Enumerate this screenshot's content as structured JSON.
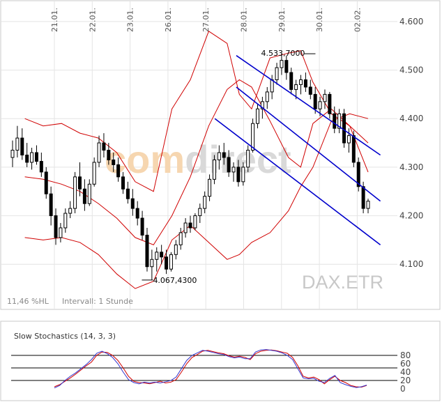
{
  "symbol": "DAX.ETR",
  "watermark": {
    "part1": "comdirect",
    "colors": [
      "#f6d6b0",
      "#d9d9d9"
    ]
  },
  "info": {
    "volatility": "11,46 %HL",
    "interval": "Intervall: 1 Stunde"
  },
  "chart_data": [
    {
      "type": "candlestick",
      "x_labels": [
        "21.01.",
        "22.01.",
        "23.01.",
        "26.01.",
        "27.01.",
        "28.01.",
        "29.01.",
        "30.01.",
        "02.02."
      ],
      "y_ticks": [
        "4.100",
        "4.200",
        "4.300",
        "4.400",
        "4.500",
        "4.600"
      ],
      "y_tick_values": [
        4100,
        4200,
        4300,
        4400,
        4500,
        4600
      ],
      "ylim": [
        4030,
        4630
      ],
      "annotations": [
        {
          "text": "4.533,7000",
          "value": 4533.7,
          "index": 97
        },
        {
          "text": "4.067,4300",
          "value": 4067.43,
          "index": 44
        }
      ],
      "candles": [
        {
          "o": 4320,
          "h": 4355,
          "l": 4300,
          "c": 4335
        },
        {
          "o": 4335,
          "h": 4385,
          "l": 4320,
          "c": 4360
        },
        {
          "o": 4360,
          "h": 4380,
          "l": 4315,
          "c": 4325
        },
        {
          "o": 4325,
          "h": 4350,
          "l": 4300,
          "c": 4310
        },
        {
          "o": 4310,
          "h": 4340,
          "l": 4295,
          "c": 4330
        },
        {
          "o": 4330,
          "h": 4345,
          "l": 4305,
          "c": 4312
        },
        {
          "o": 4312,
          "h": 4330,
          "l": 4280,
          "c": 4290
        },
        {
          "o": 4290,
          "h": 4300,
          "l": 4235,
          "c": 4245
        },
        {
          "o": 4245,
          "h": 4260,
          "l": 4180,
          "c": 4200
        },
        {
          "o": 4200,
          "h": 4215,
          "l": 4140,
          "c": 4155
        },
        {
          "o": 4155,
          "h": 4185,
          "l": 4145,
          "c": 4175
        },
        {
          "o": 4175,
          "h": 4215,
          "l": 4165,
          "c": 4205
        },
        {
          "o": 4205,
          "h": 4230,
          "l": 4195,
          "c": 4215
        },
        {
          "o": 4215,
          "h": 4290,
          "l": 4205,
          "c": 4280
        },
        {
          "o": 4280,
          "h": 4310,
          "l": 4240,
          "c": 4255
        },
        {
          "o": 4255,
          "h": 4275,
          "l": 4210,
          "c": 4225
        },
        {
          "o": 4225,
          "h": 4275,
          "l": 4220,
          "c": 4265
        },
        {
          "o": 4265,
          "h": 4320,
          "l": 4260,
          "c": 4310
        },
        {
          "o": 4310,
          "h": 4365,
          "l": 4300,
          "c": 4350
        },
        {
          "o": 4350,
          "h": 4370,
          "l": 4320,
          "c": 4335
        },
        {
          "o": 4335,
          "h": 4350,
          "l": 4305,
          "c": 4315
        },
        {
          "o": 4315,
          "h": 4330,
          "l": 4290,
          "c": 4305
        },
        {
          "o": 4305,
          "h": 4320,
          "l": 4270,
          "c": 4280
        },
        {
          "o": 4280,
          "h": 4290,
          "l": 4245,
          "c": 4255
        },
        {
          "o": 4255,
          "h": 4270,
          "l": 4225,
          "c": 4235
        },
        {
          "o": 4235,
          "h": 4255,
          "l": 4200,
          "c": 4215
        },
        {
          "o": 4215,
          "h": 4230,
          "l": 4180,
          "c": 4195
        },
        {
          "o": 4195,
          "h": 4210,
          "l": 4150,
          "c": 4160
        },
        {
          "o": 4160,
          "h": 4175,
          "l": 4085,
          "c": 4095
        },
        {
          "o": 4095,
          "h": 4130,
          "l": 4067,
          "c": 4110
        },
        {
          "o": 4110,
          "h": 4135,
          "l": 4085,
          "c": 4125
        },
        {
          "o": 4125,
          "h": 4140,
          "l": 4100,
          "c": 4115
        },
        {
          "o": 4115,
          "h": 4130,
          "l": 4080,
          "c": 4090
        },
        {
          "o": 4090,
          "h": 4125,
          "l": 4085,
          "c": 4120
        },
        {
          "o": 4120,
          "h": 4150,
          "l": 4110,
          "c": 4140
        },
        {
          "o": 4140,
          "h": 4175,
          "l": 4130,
          "c": 4165
        },
        {
          "o": 4165,
          "h": 4195,
          "l": 4155,
          "c": 4185
        },
        {
          "o": 4185,
          "h": 4200,
          "l": 4165,
          "c": 4175
        },
        {
          "o": 4175,
          "h": 4205,
          "l": 4170,
          "c": 4200
        },
        {
          "o": 4200,
          "h": 4225,
          "l": 4185,
          "c": 4215
        },
        {
          "o": 4215,
          "h": 4250,
          "l": 4205,
          "c": 4240
        },
        {
          "o": 4240,
          "h": 4285,
          "l": 4230,
          "c": 4275
        },
        {
          "o": 4275,
          "h": 4325,
          "l": 4265,
          "c": 4315
        },
        {
          "o": 4315,
          "h": 4345,
          "l": 4295,
          "c": 4330
        },
        {
          "o": 4330,
          "h": 4350,
          "l": 4305,
          "c": 4320
        },
        {
          "o": 4320,
          "h": 4335,
          "l": 4280,
          "c": 4290
        },
        {
          "o": 4290,
          "h": 4310,
          "l": 4270,
          "c": 4300
        },
        {
          "o": 4300,
          "h": 4315,
          "l": 4260,
          "c": 4270
        },
        {
          "o": 4270,
          "h": 4310,
          "l": 4262,
          "c": 4300
        },
        {
          "o": 4300,
          "h": 4345,
          "l": 4290,
          "c": 4335
        },
        {
          "o": 4335,
          "h": 4400,
          "l": 4330,
          "c": 4390
        },
        {
          "o": 4390,
          "h": 4430,
          "l": 4380,
          "c": 4420
        },
        {
          "o": 4420,
          "h": 4445,
          "l": 4400,
          "c": 4435
        },
        {
          "o": 4435,
          "h": 4465,
          "l": 4420,
          "c": 4455
        },
        {
          "o": 4455,
          "h": 4490,
          "l": 4440,
          "c": 4480
        },
        {
          "o": 4480,
          "h": 4515,
          "l": 4470,
          "c": 4505
        },
        {
          "o": 4505,
          "h": 4534,
          "l": 4490,
          "c": 4520
        },
        {
          "o": 4520,
          "h": 4530,
          "l": 4480,
          "c": 4495
        },
        {
          "o": 4495,
          "h": 4505,
          "l": 4450,
          "c": 4460
        },
        {
          "o": 4460,
          "h": 4480,
          "l": 4440,
          "c": 4470
        },
        {
          "o": 4470,
          "h": 4490,
          "l": 4450,
          "c": 4480
        },
        {
          "o": 4480,
          "h": 4495,
          "l": 4455,
          "c": 4465
        },
        {
          "o": 4465,
          "h": 4480,
          "l": 4440,
          "c": 4450
        },
        {
          "o": 4450,
          "h": 4465,
          "l": 4410,
          "c": 4420
        },
        {
          "o": 4420,
          "h": 4445,
          "l": 4405,
          "c": 4435
        },
        {
          "o": 4435,
          "h": 4460,
          "l": 4420,
          "c": 4450
        },
        {
          "o": 4450,
          "h": 4455,
          "l": 4400,
          "c": 4410
        },
        {
          "o": 4410,
          "h": 4425,
          "l": 4370,
          "c": 4380
        },
        {
          "o": 4380,
          "h": 4420,
          "l": 4370,
          "c": 4410
        },
        {
          "o": 4410,
          "h": 4420,
          "l": 4340,
          "c": 4350
        },
        {
          "o": 4350,
          "h": 4380,
          "l": 4330,
          "c": 4365
        },
        {
          "o": 4365,
          "h": 4375,
          "l": 4300,
          "c": 4310
        },
        {
          "o": 4310,
          "h": 4320,
          "l": 4250,
          "c": 4260
        },
        {
          "o": 4260,
          "h": 4270,
          "l": 4205,
          "c": 4215
        },
        {
          "o": 4215,
          "h": 4235,
          "l": 4205,
          "c": 4230
        }
      ],
      "bollinger": {
        "upper": [
          [
            4,
            4400
          ],
          [
            10,
            4385
          ],
          [
            16,
            4390
          ],
          [
            22,
            4370
          ],
          [
            28,
            4360
          ],
          [
            34,
            4330
          ],
          [
            40,
            4270
          ],
          [
            46,
            4250
          ],
          [
            52,
            4420
          ],
          [
            58,
            4480
          ],
          [
            64,
            4580
          ],
          [
            70,
            4555
          ],
          [
            74,
            4450
          ],
          [
            78,
            4420
          ],
          [
            84,
            4525
          ],
          [
            90,
            4535
          ],
          [
            94,
            4540
          ],
          [
            98,
            4475
          ],
          [
            104,
            4410
          ],
          [
            110,
            4385
          ],
          [
            116,
            4350
          ]
        ],
        "lower": [
          [
            4,
            4155
          ],
          [
            10,
            4150
          ],
          [
            16,
            4155
          ],
          [
            22,
            4145
          ],
          [
            28,
            4120
          ],
          [
            34,
            4080
          ],
          [
            40,
            4050
          ],
          [
            46,
            4065
          ],
          [
            52,
            4150
          ],
          [
            58,
            4180
          ],
          [
            64,
            4145
          ],
          [
            70,
            4110
          ],
          [
            74,
            4120
          ],
          [
            78,
            4145
          ],
          [
            84,
            4165
          ],
          [
            90,
            4210
          ],
          [
            94,
            4260
          ],
          [
            98,
            4300
          ],
          [
            104,
            4395
          ],
          [
            110,
            4410
          ],
          [
            116,
            4400
          ]
        ],
        "mid": [
          [
            4,
            4280
          ],
          [
            10,
            4275
          ],
          [
            16,
            4265
          ],
          [
            22,
            4250
          ],
          [
            28,
            4225
          ],
          [
            34,
            4195
          ],
          [
            40,
            4155
          ],
          [
            46,
            4140
          ],
          [
            52,
            4200
          ],
          [
            58,
            4280
          ],
          [
            64,
            4385
          ],
          [
            70,
            4460
          ],
          [
            74,
            4480
          ],
          [
            78,
            4465
          ],
          [
            84,
            4395
          ],
          [
            90,
            4320
          ],
          [
            94,
            4300
          ],
          [
            98,
            4390
          ],
          [
            104,
            4420
          ],
          [
            110,
            4385
          ],
          [
            116,
            4290
          ]
        ]
      },
      "trend_channel": {
        "lines": [
          {
            "x1": 73,
            "y1": 4530,
            "x2": 120,
            "y2": 4325
          },
          {
            "x1": 73,
            "y1": 4465,
            "x2": 120,
            "y2": 4230
          },
          {
            "x1": 66,
            "y1": 4400,
            "x2": 120,
            "y2": 4140
          }
        ],
        "color": "#0000cc"
      }
    },
    {
      "type": "line",
      "title": "Slow Stochastics (14, 3, 3)",
      "y_ticks": [
        "0",
        "20",
        "40",
        "60",
        "80"
      ],
      "y_tick_values": [
        0,
        20,
        40,
        60,
        80
      ],
      "hlines": [
        20,
        50,
        80
      ],
      "ylim": [
        -5,
        100
      ],
      "series": [
        {
          "color": "#d00000",
          "values": [
            5,
            10,
            18,
            26,
            35,
            45,
            55,
            64,
            80,
            88,
            87,
            80,
            68,
            50,
            30,
            18,
            15,
            14,
            12,
            15,
            18,
            14,
            16,
            22,
            40,
            60,
            75,
            82,
            90,
            92,
            89,
            86,
            84,
            79,
            76,
            78,
            75,
            70,
            84,
            90,
            92,
            93,
            91,
            88,
            85,
            75,
            55,
            30,
            26,
            28,
            22,
            12,
            22,
            30,
            20,
            15,
            8,
            5,
            4,
            8
          ]
        },
        {
          "color": "#3333cc",
          "values": [
            2,
            8,
            20,
            30,
            38,
            48,
            58,
            70,
            85,
            90,
            84,
            75,
            60,
            40,
            22,
            15,
            12,
            16,
            14,
            16,
            14,
            17,
            20,
            28,
            48,
            68,
            80,
            86,
            92,
            90,
            87,
            84,
            82,
            77,
            74,
            76,
            72,
            72,
            88,
            93,
            94,
            92,
            90,
            86,
            80,
            70,
            48,
            26,
            24,
            25,
            18,
            15,
            25,
            32,
            15,
            10,
            6,
            3,
            5,
            9
          ]
        }
      ]
    }
  ]
}
